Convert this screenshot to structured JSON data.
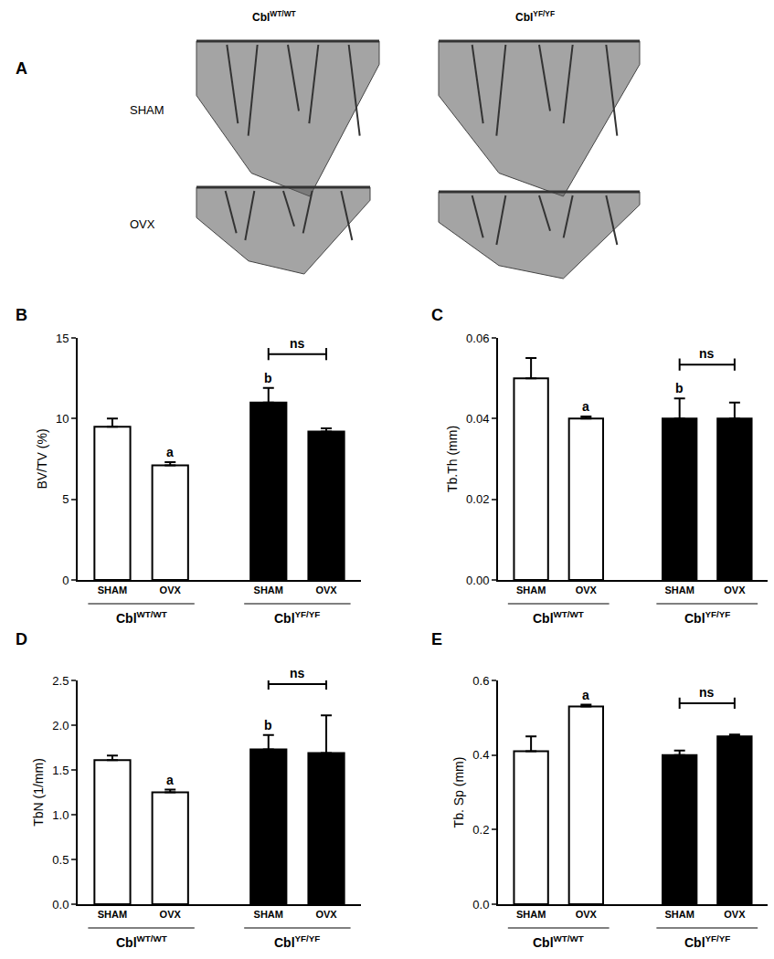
{
  "panel_a": {
    "label": "A",
    "columns": [
      {
        "name": "Cbl",
        "superscript": "WT/WT"
      },
      {
        "name": "Cbl",
        "superscript": "YF/YF"
      }
    ],
    "rows": [
      "SHAM",
      "OVX"
    ]
  },
  "chart_data": [
    {
      "type": "bar",
      "panel": "B",
      "y_label": "BV/TV (%)",
      "categories": [
        "SHAM",
        "OVX",
        "SHAM",
        "OVX"
      ],
      "groups": [
        {
          "name": "Cbl",
          "superscript": "WT/WT",
          "members": [
            0,
            1
          ]
        },
        {
          "name": "Cbl",
          "superscript": "YF/YF",
          "members": [
            2,
            3
          ]
        }
      ],
      "values": [
        9.5,
        7.1,
        11.0,
        9.2
      ],
      "errors": [
        0.5,
        0.2,
        0.9,
        0.2
      ],
      "colors": [
        "#ffffff",
        "#ffffff",
        "#000000",
        "#000000"
      ],
      "ylim": [
        0,
        15
      ],
      "yticks": [
        0,
        5,
        10,
        15
      ],
      "letters": [
        {
          "text": "a",
          "index": 1
        },
        {
          "text": "b",
          "index": 2
        }
      ],
      "brackets": [
        {
          "text": "ns",
          "from": 2,
          "to": 3
        }
      ]
    },
    {
      "type": "bar",
      "panel": "C",
      "y_label": "Tb.Th (mm)",
      "categories": [
        "SHAM",
        "OVX",
        "SHAM",
        "OVX"
      ],
      "groups": [
        {
          "name": "Cbl",
          "superscript": "WT/WT",
          "members": [
            0,
            1
          ]
        },
        {
          "name": "Cbl",
          "superscript": "YF/YF",
          "members": [
            2,
            3
          ]
        }
      ],
      "values": [
        0.05,
        0.04,
        0.04,
        0.04
      ],
      "errors": [
        0.005,
        0.0005,
        0.005,
        0.004
      ],
      "colors": [
        "#ffffff",
        "#ffffff",
        "#000000",
        "#000000"
      ],
      "ylim": [
        0,
        0.06
      ],
      "yticks": [
        {
          "value": 0,
          "label": "0.00"
        },
        {
          "value": 0.02,
          "label": "0.02"
        },
        {
          "value": 0.04,
          "label": "0.04"
        },
        {
          "value": 0.06,
          "label": "0.06"
        }
      ],
      "letters": [
        {
          "text": "a",
          "index": 1
        },
        {
          "text": "b",
          "index": 2
        }
      ],
      "brackets": [
        {
          "text": "ns",
          "from": 2,
          "to": 3
        }
      ]
    },
    {
      "type": "bar",
      "panel": "D",
      "y_label": "TbN (1/mm)",
      "categories": [
        "SHAM",
        "OVX",
        "SHAM",
        "OVX"
      ],
      "groups": [
        {
          "name": "Cbl",
          "superscript": "WT/WT",
          "members": [
            0,
            1
          ]
        },
        {
          "name": "Cbl",
          "superscript": "YF/YF",
          "members": [
            2,
            3
          ]
        }
      ],
      "values": [
        1.61,
        1.25,
        1.73,
        1.69
      ],
      "errors": [
        0.05,
        0.03,
        0.16,
        0.42
      ],
      "colors": [
        "#ffffff",
        "#ffffff",
        "#000000",
        "#000000"
      ],
      "ylim": [
        0,
        2.5
      ],
      "yticks": [
        {
          "value": 0,
          "label": "0.0"
        },
        {
          "value": 0.5,
          "label": "0.5"
        },
        {
          "value": 1,
          "label": "1.0"
        },
        {
          "value": 1.5,
          "label": "1.5"
        },
        {
          "value": 2,
          "label": "2.0"
        },
        {
          "value": 2.5,
          "label": "2.5"
        }
      ],
      "letters": [
        {
          "text": "a",
          "index": 1
        },
        {
          "text": "b",
          "index": 2
        }
      ],
      "brackets": [
        {
          "text": "ns",
          "from": 2,
          "to": 3
        }
      ]
    },
    {
      "type": "bar",
      "panel": "E",
      "y_label": "Tb. Sp (mm)",
      "categories": [
        "SHAM",
        "OVX",
        "SHAM",
        "OVX"
      ],
      "groups": [
        {
          "name": "Cbl",
          "superscript": "WT/WT",
          "members": [
            0,
            1
          ]
        },
        {
          "name": "Cbl",
          "superscript": "YF/YF",
          "members": [
            2,
            3
          ]
        }
      ],
      "values": [
        0.41,
        0.53,
        0.4,
        0.45
      ],
      "errors": [
        0.04,
        0.005,
        0.012,
        0.005
      ],
      "colors": [
        "#ffffff",
        "#ffffff",
        "#000000",
        "#000000"
      ],
      "ylim": [
        0,
        0.6
      ],
      "yticks": [
        {
          "value": 0,
          "label": "0.0"
        },
        {
          "value": 0.2,
          "label": "0.2"
        },
        {
          "value": 0.4,
          "label": "0.4"
        },
        {
          "value": 0.6,
          "label": "0.6"
        }
      ],
      "letters": [
        {
          "text": "a",
          "index": 1
        }
      ],
      "brackets": [
        {
          "text": "ns",
          "from": 2,
          "to": 3
        }
      ]
    }
  ]
}
